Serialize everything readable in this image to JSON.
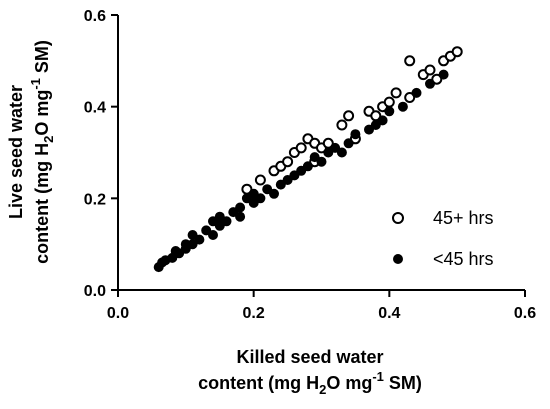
{
  "chart_data": {
    "type": "scatter",
    "xlabel": {
      "line1": "Killed seed water",
      "line2_pre": "content (mg H",
      "sub": "2",
      "line2_mid": "O mg",
      "sup": "-1",
      "line2_post": " SM)"
    },
    "ylabel": {
      "line1": "Live seed water",
      "line2_pre": "content (mg H",
      "sub": "2",
      "line2_mid": "O mg",
      "sup": "-1",
      "line2_post": " SM)"
    },
    "xlim": [
      0.0,
      0.6
    ],
    "ylim": [
      0.0,
      0.6
    ],
    "xticks": [
      "0.0",
      "0.2",
      "0.4",
      "0.6"
    ],
    "yticks": [
      "0.0",
      "0.2",
      "0.4",
      "0.6"
    ],
    "legend_position": "right",
    "series": [
      {
        "name": "45+ hrs",
        "marker": "open-circle",
        "points": [
          [
            0.19,
            0.22
          ],
          [
            0.21,
            0.24
          ],
          [
            0.23,
            0.26
          ],
          [
            0.24,
            0.27
          ],
          [
            0.25,
            0.28
          ],
          [
            0.26,
            0.3
          ],
          [
            0.27,
            0.31
          ],
          [
            0.28,
            0.33
          ],
          [
            0.29,
            0.32
          ],
          [
            0.29,
            0.28
          ],
          [
            0.3,
            0.31
          ],
          [
            0.31,
            0.32
          ],
          [
            0.33,
            0.36
          ],
          [
            0.34,
            0.38
          ],
          [
            0.35,
            0.33
          ],
          [
            0.37,
            0.39
          ],
          [
            0.38,
            0.38
          ],
          [
            0.39,
            0.4
          ],
          [
            0.4,
            0.41
          ],
          [
            0.41,
            0.43
          ],
          [
            0.43,
            0.42
          ],
          [
            0.45,
            0.47
          ],
          [
            0.46,
            0.48
          ],
          [
            0.47,
            0.46
          ],
          [
            0.48,
            0.5
          ],
          [
            0.49,
            0.51
          ],
          [
            0.43,
            0.5
          ],
          [
            0.5,
            0.52
          ]
        ]
      },
      {
        "name": "<45 hrs",
        "marker": "filled-circle",
        "points": [
          [
            0.06,
            0.05
          ],
          [
            0.065,
            0.06
          ],
          [
            0.07,
            0.065
          ],
          [
            0.08,
            0.07
          ],
          [
            0.085,
            0.085
          ],
          [
            0.09,
            0.08
          ],
          [
            0.1,
            0.1
          ],
          [
            0.1,
            0.09
          ],
          [
            0.11,
            0.1
          ],
          [
            0.11,
            0.12
          ],
          [
            0.12,
            0.11
          ],
          [
            0.13,
            0.13
          ],
          [
            0.14,
            0.12
          ],
          [
            0.14,
            0.15
          ],
          [
            0.15,
            0.14
          ],
          [
            0.15,
            0.16
          ],
          [
            0.16,
            0.15
          ],
          [
            0.17,
            0.17
          ],
          [
            0.18,
            0.16
          ],
          [
            0.18,
            0.18
          ],
          [
            0.19,
            0.2
          ],
          [
            0.2,
            0.19
          ],
          [
            0.2,
            0.21
          ],
          [
            0.21,
            0.2
          ],
          [
            0.22,
            0.22
          ],
          [
            0.23,
            0.21
          ],
          [
            0.24,
            0.23
          ],
          [
            0.25,
            0.24
          ],
          [
            0.26,
            0.25
          ],
          [
            0.27,
            0.26
          ],
          [
            0.28,
            0.27
          ],
          [
            0.29,
            0.29
          ],
          [
            0.3,
            0.28
          ],
          [
            0.31,
            0.3
          ],
          [
            0.32,
            0.31
          ],
          [
            0.33,
            0.3
          ],
          [
            0.34,
            0.32
          ],
          [
            0.35,
            0.34
          ],
          [
            0.37,
            0.35
          ],
          [
            0.38,
            0.36
          ],
          [
            0.39,
            0.37
          ],
          [
            0.4,
            0.39
          ],
          [
            0.42,
            0.4
          ],
          [
            0.44,
            0.43
          ],
          [
            0.46,
            0.45
          ],
          [
            0.48,
            0.47
          ]
        ]
      }
    ]
  }
}
